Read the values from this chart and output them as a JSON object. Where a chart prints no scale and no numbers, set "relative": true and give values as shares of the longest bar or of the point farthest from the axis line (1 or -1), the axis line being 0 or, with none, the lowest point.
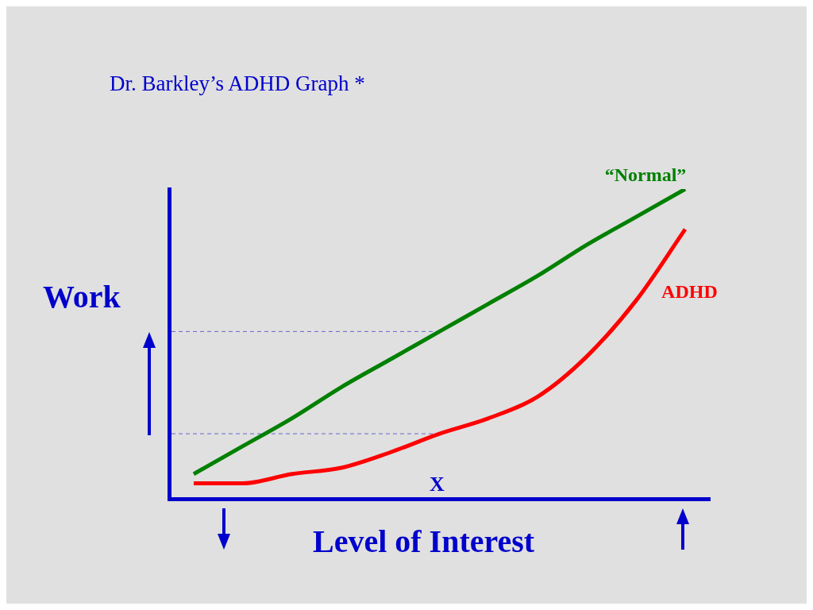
{
  "chart_data": {
    "type": "line",
    "title": "Dr. Barkley’s ADHD Graph *",
    "xlabel": "Level of Interest",
    "ylabel": "Work",
    "relative": true,
    "categories": [
      null,
      null,
      null,
      null,
      null,
      null,
      null,
      null,
      null,
      null,
      null
    ],
    "series": [
      {
        "name": "“Normal”",
        "color": "#008000",
        "values": [
          0.08,
          0.17,
          0.26,
          0.36,
          0.45,
          0.54,
          0.63,
          0.72,
          0.82,
          0.91,
          1.0
        ]
      },
      {
        "name": "ADHD",
        "color": "#ff0000",
        "values": [
          0.05,
          0.05,
          0.08,
          0.1,
          0.15,
          0.21,
          0.26,
          0.33,
          0.46,
          0.64,
          0.87
        ]
      }
    ],
    "ref_lines": [
      {
        "axis": "y",
        "value": 0.54,
        "color": "#6666cc",
        "line_style": "dashed"
      },
      {
        "axis": "y",
        "value": 0.21,
        "color": "#6666cc",
        "line_style": "dashed"
      }
    ],
    "annotations": [
      "X"
    ],
    "grid": false
  }
}
